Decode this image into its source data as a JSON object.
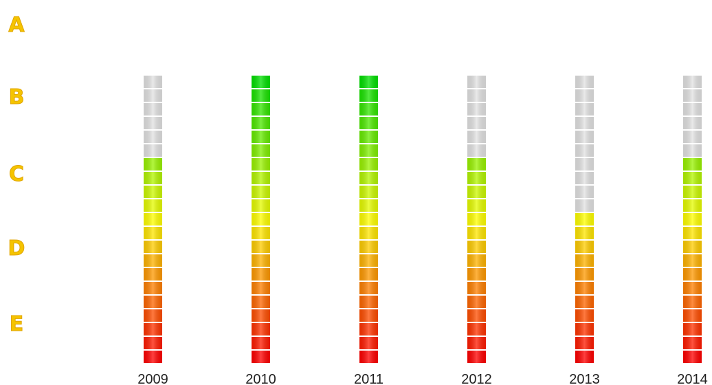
{
  "chart_data": {
    "type": "bar",
    "title": "",
    "xlabel": "",
    "ylabel": "",
    "categories": [
      "2009",
      "2010",
      "2011",
      "2012",
      "2013",
      "2014"
    ],
    "values": [
      15,
      21,
      21,
      15,
      11,
      15
    ],
    "segments_total": 21,
    "y_tick_labels": [
      "A",
      "B",
      "C",
      "D",
      "E"
    ],
    "colors": {
      "label": "#f5c400",
      "label_stroke": "#e0a400",
      "empty_segment": "#e2e2e2",
      "gradient_low": "#ff0000",
      "gradient_mid": "#ffff00",
      "gradient_high": "#00e000"
    }
  }
}
